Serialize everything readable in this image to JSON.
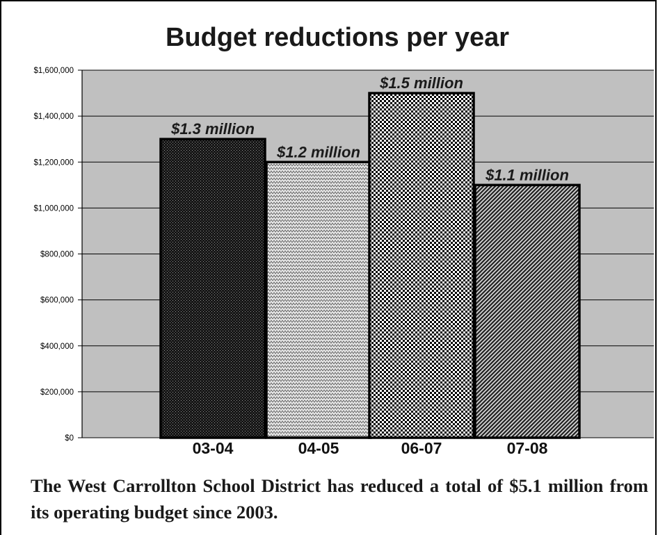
{
  "chart_data": {
    "type": "bar",
    "title": "Budget reductions per year",
    "categories": [
      "03-04",
      "04-05",
      "06-07",
      "07-08"
    ],
    "values": [
      1300000,
      1200000,
      1500000,
      1100000
    ],
    "data_labels": [
      "$1.3 million",
      "$1.2 million",
      "$1.5 million",
      "$1.1 million"
    ],
    "y_ticks": [
      "$0",
      "$200,000",
      "$400,000",
      "$600,000",
      "$800,000",
      "$1,000,000",
      "$1,200,000",
      "$1,400,000",
      "$1,600,000"
    ],
    "ylim": [
      0,
      1600000
    ],
    "grid": true,
    "plot_background": "#c0c0c0",
    "bar_patterns": [
      "dark-dots",
      "light-zigzag",
      "checkerboard",
      "diagonal-hatch"
    ]
  },
  "caption": "The West Carrollton School District has reduced a total of $5.1 million from its operating budget since 2003."
}
